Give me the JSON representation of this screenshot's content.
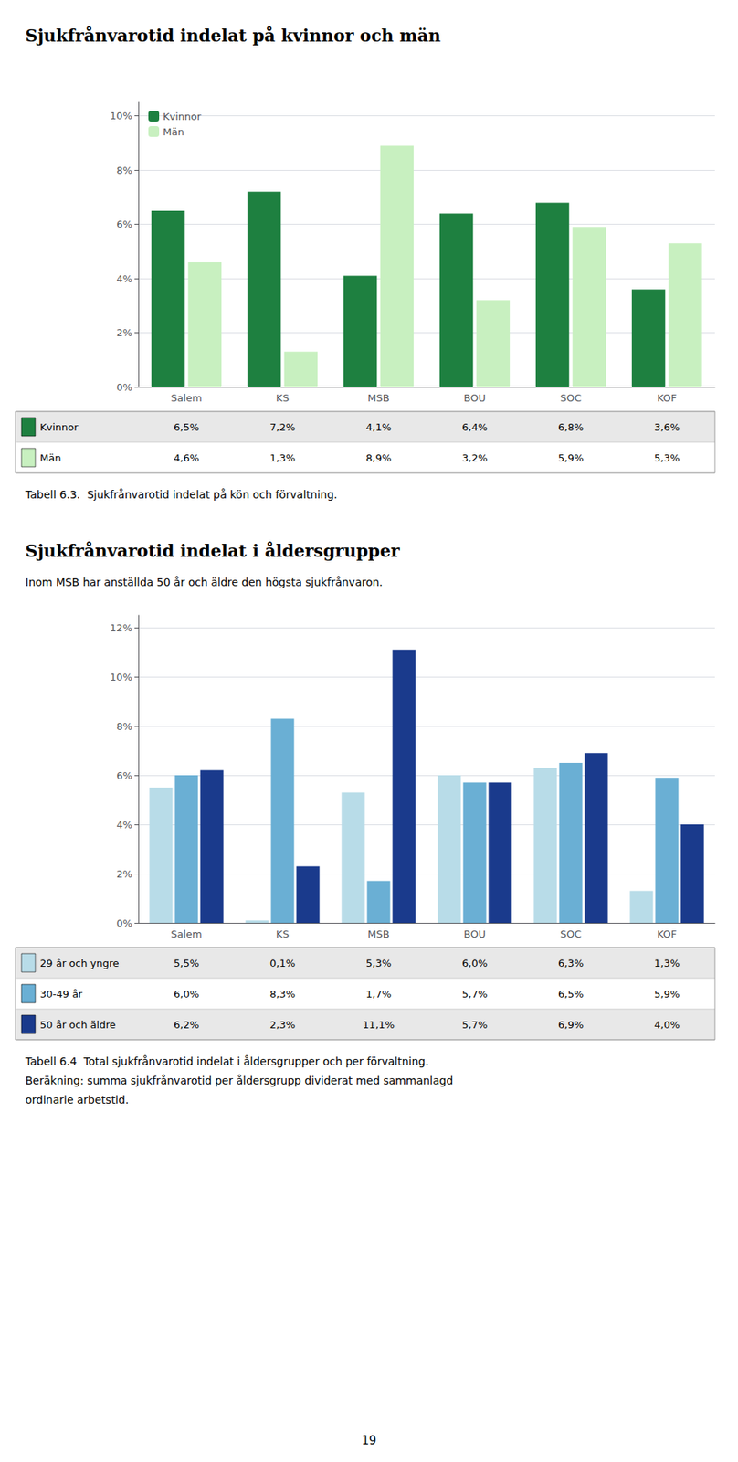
{
  "chart_data": [
    {
      "type": "bar",
      "title": "Sjukfrånvarotid indelat på kvinnor och män",
      "caption": [
        "Tabell 6.3.  Sjukfrånvarotid indelat på kön och förvaltning."
      ],
      "categories": [
        "Salem",
        "KS",
        "MSB",
        "BOU",
        "SOC",
        "KOF"
      ],
      "series": [
        {
          "name": "Kvinnor",
          "color": "#1e8040",
          "values": [
            6.5,
            7.2,
            4.1,
            6.4,
            6.8,
            3.6
          ],
          "value_labels": [
            "6,5%",
            "7,2%",
            "4,1%",
            "6,4%",
            "6,8%",
            "3,6%"
          ]
        },
        {
          "name": "Män",
          "color": "#c8f0c0",
          "values": [
            4.6,
            1.3,
            8.9,
            3.2,
            5.9,
            5.3
          ],
          "value_labels": [
            "4,6%",
            "1,3%",
            "8,9%",
            "3,2%",
            "5,9%",
            "5,3%"
          ]
        }
      ],
      "ylim": [
        0,
        10.5
      ],
      "yticks": [
        {
          "value": 0,
          "label": "0%"
        },
        {
          "value": 2,
          "label": "2%"
        },
        {
          "value": 4,
          "label": "4%"
        },
        {
          "value": 6,
          "label": "6%"
        },
        {
          "value": 8,
          "label": "8%"
        },
        {
          "value": 10,
          "label": "10%"
        }
      ],
      "grid": true,
      "legend": "upper left"
    },
    {
      "type": "bar",
      "title": "Sjukfrånvarotid indelat i åldersgrupper",
      "subtitle": "Inom MSB har anställda 50 år och äldre den högsta sjukfrånvaron.",
      "caption": [
        "Tabell 6.4  Total sjukfrånvarotid indelat i åldersgrupper och per förvaltning.",
        "Beräkning: summa sjukfrånvarotid per åldersgrupp dividerat med sammanlagd",
        "ordinarie arbetstid."
      ],
      "categories": [
        "Salem",
        "KS",
        "MSB",
        "BOU",
        "SOC",
        "KOF"
      ],
      "series": [
        {
          "name": "29 år och yngre",
          "color": "#b8dce8",
          "values": [
            5.5,
            0.1,
            5.3,
            6.0,
            6.3,
            1.3
          ],
          "value_labels": [
            "5,5%",
            "0,1%",
            "5,3%",
            "6,0%",
            "6,3%",
            "1,3%"
          ]
        },
        {
          "name": "30-49 år",
          "color": "#6aafd4",
          "values": [
            6.0,
            8.3,
            1.7,
            5.7,
            6.5,
            5.9
          ],
          "value_labels": [
            "6,0%",
            "8,3%",
            "1,7%",
            "5,7%",
            "6,5%",
            "5,9%"
          ]
        },
        {
          "name": "50 år och äldre",
          "color": "#1a3a8c",
          "values": [
            6.2,
            2.3,
            11.1,
            5.7,
            6.9,
            4.0
          ],
          "value_labels": [
            "6,2%",
            "2,3%",
            "11,1%",
            "5,7%",
            "6,9%",
            "4,0%"
          ]
        }
      ],
      "ylim": [
        0,
        12.5
      ],
      "yticks": [
        {
          "value": 0,
          "label": "0%"
        },
        {
          "value": 2,
          "label": "2%"
        },
        {
          "value": 4,
          "label": "4%"
        },
        {
          "value": 6,
          "label": "6%"
        },
        {
          "value": 8,
          "label": "8%"
        },
        {
          "value": 10,
          "label": "10%"
        },
        {
          "value": 12,
          "label": "12%"
        }
      ],
      "grid": true
    }
  ],
  "page_number": "19"
}
